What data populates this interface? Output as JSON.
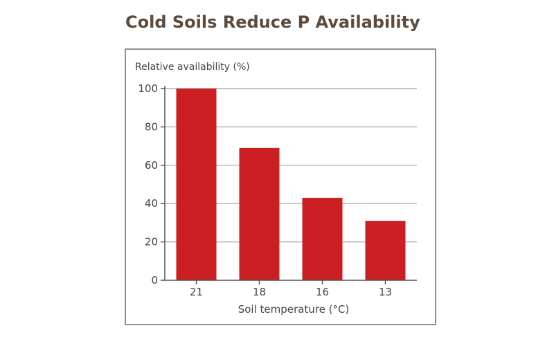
{
  "title": "Cold Soils Reduce P Availability",
  "colors": {
    "bar": "#cc1f24",
    "title": "#5c4a3d",
    "frame": "#9a8e84",
    "axis": "#555555",
    "grid": "#a0a0a0",
    "text": "#444444"
  },
  "chart_data": {
    "type": "bar",
    "title": "Cold Soils Reduce P Availability",
    "xlabel": "Soil temperature (°C)",
    "ylabel": "Relative availability (%)",
    "categories": [
      "21",
      "18",
      "16",
      "13"
    ],
    "values": [
      100,
      69,
      43,
      31
    ],
    "ylim": [
      0,
      100
    ],
    "yticks": [
      0,
      20,
      40,
      60,
      80,
      100
    ],
    "grid": true,
    "legend": "none"
  }
}
